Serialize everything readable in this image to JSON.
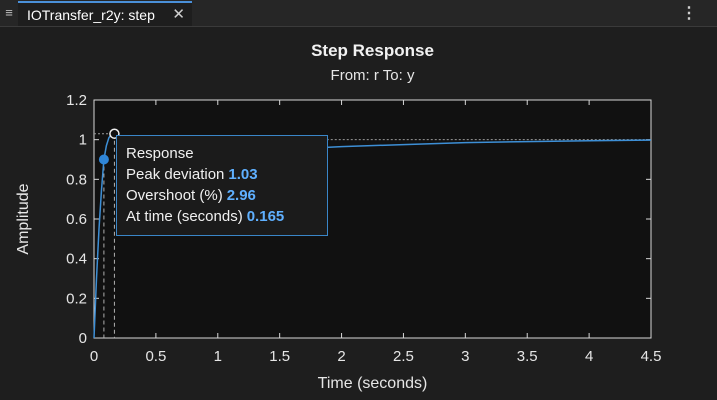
{
  "tab": {
    "menu_icon": "hamburger-icon",
    "label": "IOTransfer_r2y: step",
    "close_icon": "close-icon",
    "more_icon": "kebab-icon"
  },
  "tooltip": {
    "title": "Response",
    "peak_label": "Peak  deviation",
    "peak_value": "1.03",
    "overshoot_label": "Overshoot  (%)",
    "overshoot_value": "2.96",
    "time_label": "At  time  (seconds)",
    "time_value": "0.165"
  },
  "chart_data": {
    "type": "line",
    "title": "Step Response",
    "subtitle": "From: r  To: y",
    "xlabel": "Time (seconds)",
    "ylabel": "Amplitude",
    "xlim": [
      0,
      4.5
    ],
    "ylim": [
      0,
      1.2
    ],
    "xticks": [
      "0",
      "0.5",
      "1",
      "1.5",
      "2",
      "2.5",
      "3",
      "3.5",
      "4",
      "4.5"
    ],
    "yticks": [
      "0",
      "0.2",
      "0.4",
      "0.6",
      "0.8",
      "1",
      "1.2"
    ],
    "x": [
      0,
      0.02,
      0.04,
      0.06,
      0.08,
      0.1,
      0.12,
      0.14,
      0.165,
      0.2,
      0.3,
      0.5,
      0.8,
      1.0,
      1.5,
      2.0,
      2.5,
      3.0,
      3.5,
      4.0,
      4.5
    ],
    "y": [
      0,
      0.3,
      0.55,
      0.74,
      0.9,
      0.97,
      1.01,
      1.025,
      1.03,
      1.0,
      0.93,
      0.925,
      0.93,
      0.935,
      0.95,
      0.965,
      0.975,
      0.985,
      0.99,
      0.995,
      0.998
    ],
    "peak": {
      "x": 0.165,
      "y": 1.03
    },
    "rise_marker": {
      "x": 0.08,
      "y": 0.9
    },
    "final_value": 1,
    "line_color": "#3d8fd6",
    "background": "#111111",
    "grid": false
  }
}
